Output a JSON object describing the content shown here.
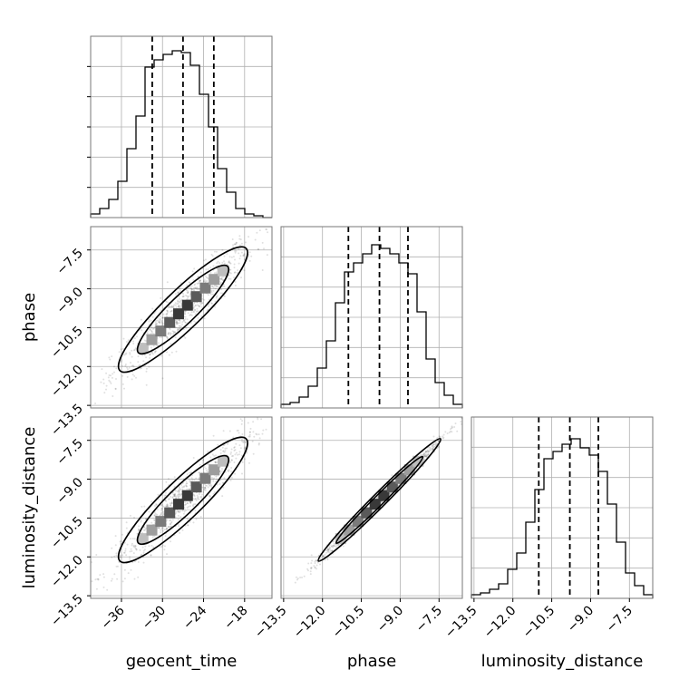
{
  "chart_data": {
    "type": "corner",
    "parameters": [
      {
        "name": "geocent_time",
        "ticks": [
          "−36",
          "−30",
          "−24",
          "−18"
        ],
        "range": [
          -40.5,
          -14.0
        ],
        "quantiles": [
          -31.5,
          -27.0,
          -22.5
        ]
      },
      {
        "name": "phase",
        "ticks": [
          "−13.5",
          "−12.0",
          "−10.5",
          "−9.0",
          "−7.5"
        ],
        "range": [
          -13.6,
          -6.6
        ],
        "quantiles": [
          -11.0,
          -9.8,
          -8.7
        ]
      },
      {
        "name": "luminosity_distance",
        "ticks": [
          "−13.5",
          "−12.0",
          "−10.5",
          "−9.0",
          "−7.5"
        ],
        "range": [
          -13.6,
          -6.6
        ],
        "quantiles": [
          -11.0,
          -9.8,
          -8.7
        ]
      }
    ],
    "histograms": [
      [
        0.02,
        0.05,
        0.1,
        0.2,
        0.38,
        0.56,
        0.83,
        0.87,
        0.9,
        0.92,
        0.91,
        0.84,
        0.68,
        0.5,
        0.27,
        0.14,
        0.05,
        0.02,
        0.01,
        0.0
      ],
      [
        0.02,
        0.03,
        0.06,
        0.12,
        0.22,
        0.37,
        0.58,
        0.75,
        0.8,
        0.85,
        0.9,
        0.88,
        0.85,
        0.8,
        0.74,
        0.53,
        0.27,
        0.14,
        0.07,
        0.02
      ],
      [
        0.02,
        0.03,
        0.05,
        0.08,
        0.16,
        0.25,
        0.42,
        0.6,
        0.77,
        0.81,
        0.85,
        0.88,
        0.83,
        0.79,
        0.7,
        0.52,
        0.31,
        0.14,
        0.07,
        0.02
      ]
    ],
    "correlated_pairs": [
      {
        "x": "geocent_time",
        "y": "phase"
      },
      {
        "x": "geocent_time",
        "y": "luminosity_distance"
      },
      {
        "x": "phase",
        "y": "luminosity_distance"
      }
    ],
    "grid": true,
    "colors": {
      "line": "#000000",
      "grid": "#b0b0b0",
      "points": "#000000"
    }
  }
}
